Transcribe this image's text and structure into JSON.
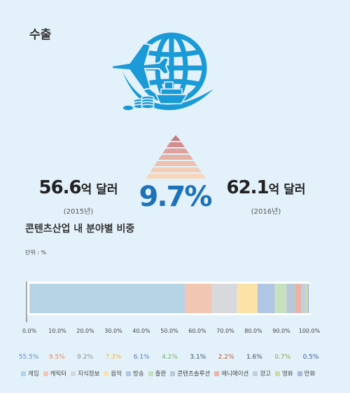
{
  "title": "수출",
  "left_amount": {
    "value": "56.6",
    "unit": "억 달러",
    "year": "(2015년)"
  },
  "right_amount": {
    "value": "62.1",
    "unit": "억 달러",
    "year": "(2016년)"
  },
  "growth_pct": "9.7%",
  "chart_data": {
    "type": "bar",
    "orientation": "horizontal-stacked",
    "title": "콘텐츠산업 내 분야별 비중",
    "unit_label": "단위 : %",
    "xlim": [
      0,
      100
    ],
    "ticks": [
      "0.0%",
      "10.0%",
      "20.0%",
      "30.0%",
      "40.0%",
      "50.0%",
      "60.0%",
      "70.0%",
      "80.0%",
      "90.0%",
      "100.0%"
    ],
    "series": [
      {
        "name": "게임",
        "value": 55.5,
        "label": "55.5%",
        "color": "#b7d3e6",
        "label_color": "#5b8fb9"
      },
      {
        "name": "캐릭터",
        "value": 9.5,
        "label": "9.5%",
        "color": "#f1c7b3",
        "label_color": "#e38a5f"
      },
      {
        "name": "지식정보",
        "value": 9.2,
        "label": "9.2%",
        "color": "#d8d9dc",
        "label_color": "#8c8f94"
      },
      {
        "name": "음악",
        "value": 7.3,
        "label": "7.3%",
        "color": "#fbe3a8",
        "label_color": "#e9b84a"
      },
      {
        "name": "방송",
        "value": 6.1,
        "label": "6.1%",
        "color": "#b1c5e4",
        "label_color": "#5677b0"
      },
      {
        "name": "출판",
        "value": 4.2,
        "label": "4.2%",
        "color": "#c6e0c0",
        "label_color": "#74b26a"
      },
      {
        "name": "콘텐츠솔루션",
        "value": 3.1,
        "label": "3.1%",
        "color": "#b7c8d8",
        "label_color": "#3f4f62"
      },
      {
        "name": "애니메이션",
        "value": 2.2,
        "label": "2.2%",
        "color": "#e9b4a6",
        "label_color": "#c45a3c"
      },
      {
        "name": "광고",
        "value": 1.6,
        "label": "1.6%",
        "color": "#c0cfe0",
        "label_color": "#3f4f62"
      },
      {
        "name": "영화",
        "value": 0.7,
        "label": "0.7%",
        "color": "#cfdca6",
        "label_color": "#8aa33e"
      },
      {
        "name": "만화",
        "value": 0.5,
        "label": "0.5%",
        "color": "#aab9d8",
        "label_color": "#3b5aa0"
      }
    ]
  }
}
